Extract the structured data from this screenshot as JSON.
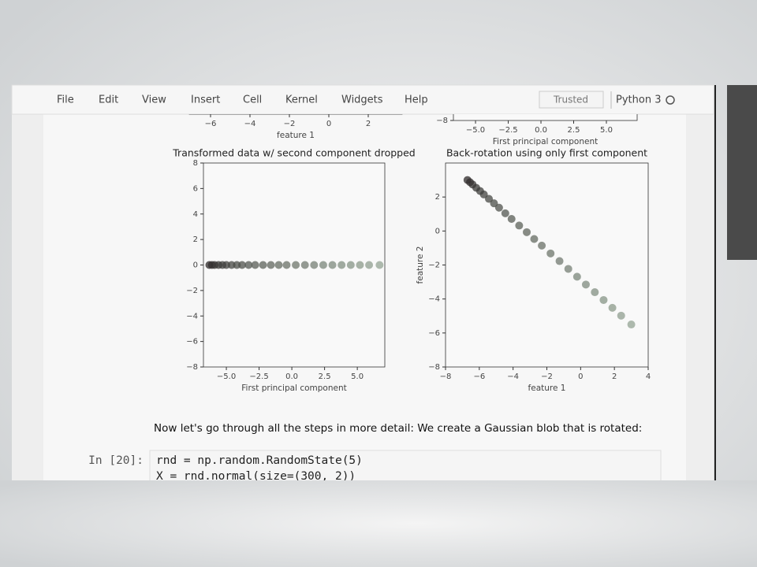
{
  "menu": [
    "File",
    "Edit",
    "View",
    "Insert",
    "Cell",
    "Kernel",
    "Widgets",
    "Help"
  ],
  "trusted": "Trusted",
  "kernel": "Python 3",
  "chart_data": [
    {
      "type": "scatter",
      "xlabel": "feature 1",
      "xlim": [
        -7.08,
        3.72
      ],
      "xticks": [
        {
          "value": -6,
          "label": "−6"
        },
        {
          "value": -4,
          "label": "−4"
        },
        {
          "value": -2,
          "label": "−2"
        },
        0,
        2
      ]
    },
    {
      "type": "scatter",
      "xlabel": "First principal component",
      "xlim": [
        -6.69,
        7.35
      ],
      "ylim": [
        -8,
        8
      ],
      "xticks": [
        {
          "value": -5,
          "label": "−5.0"
        },
        {
          "value": -2.5,
          "label": "−2.5"
        },
        {
          "value": 0,
          "label": "0.0"
        },
        2.5,
        {
          "value": 5,
          "label": "5.0"
        }
      ],
      "yticks": [
        {
          "value": -8,
          "label": "−8"
        }
      ]
    },
    {
      "type": "scatter",
      "title": "Transformed data w/ second component dropped",
      "xlabel": "First principal component",
      "xlim": [
        -6.75,
        7.1
      ],
      "ylim": [
        -8,
        8
      ],
      "xticks": [
        {
          "value": -5,
          "label": "−5.0"
        },
        {
          "value": -2.5,
          "label": "−2.5"
        },
        {
          "value": 0,
          "label": "0.0"
        },
        2.5,
        {
          "value": 5,
          "label": "5.0"
        }
      ],
      "yticks": [
        8,
        6,
        4,
        2,
        0,
        {
          "value": -2,
          "label": "−2"
        },
        {
          "value": -4,
          "label": "−4"
        },
        {
          "value": -6,
          "label": "−6"
        },
        {
          "value": -8,
          "label": "−8"
        }
      ],
      "colors": [
        "#2d2929",
        "#93a393"
      ],
      "x": [
        -6.3,
        -6.1,
        -5.9,
        -5.6,
        -5.3,
        -5.0,
        -4.6,
        -4.2,
        -3.8,
        -3.3,
        -2.8,
        -2.2,
        -1.6,
        -1.0,
        -0.4,
        0.3,
        1.0,
        1.7,
        2.4,
        3.1,
        3.8,
        4.5,
        5.2,
        5.9,
        6.7
      ],
      "values": [
        0,
        0,
        0,
        0,
        0,
        0,
        0,
        0,
        0,
        0,
        0,
        0,
        0,
        0,
        0,
        0,
        0,
        0,
        0,
        0,
        0,
        0,
        0,
        0,
        0
      ]
    },
    {
      "type": "scatter",
      "title": "Back-rotation using only first component",
      "xlabel": "feature 1",
      "ylabel": "feature 2",
      "xlim": [
        -8,
        4
      ],
      "ylim": [
        -8,
        4
      ],
      "xticks": [
        {
          "value": -8,
          "label": "−8"
        },
        {
          "value": -6,
          "label": "−6"
        },
        {
          "value": -4,
          "label": "−4"
        },
        {
          "value": -2,
          "label": "−2"
        },
        0,
        2,
        4
      ],
      "yticks": [
        2,
        0,
        {
          "value": -2,
          "label": "−2"
        },
        {
          "value": -4,
          "label": "−4"
        },
        {
          "value": -6,
          "label": "−6"
        },
        {
          "value": -8,
          "label": "−8"
        }
      ],
      "colors": [
        "#2d2929",
        "#93a393"
      ],
      "x": [
        -6.7,
        -6.55,
        -6.4,
        -6.18,
        -5.95,
        -5.73,
        -5.43,
        -5.13,
        -4.83,
        -4.46,
        -4.09,
        -3.64,
        -3.19,
        -2.75,
        -2.3,
        -1.78,
        -1.25,
        -0.73,
        -0.21,
        0.31,
        0.84,
        1.36,
        1.88,
        2.4,
        3.0
      ],
      "values": [
        3.0,
        2.87,
        2.74,
        2.54,
        2.35,
        2.15,
        1.89,
        1.63,
        1.37,
        1.04,
        0.71,
        0.32,
        -0.07,
        -0.47,
        -0.86,
        -1.32,
        -1.77,
        -2.23,
        -2.69,
        -3.15,
        -3.6,
        -4.06,
        -4.52,
        -4.98,
        -5.5
      ]
    }
  ],
  "markdown": "Now let's go through all the steps in more detail: We create a Gaussian blob that is rotated:",
  "code_cell": {
    "prompt": "In [20]:",
    "lines": [
      "rnd = np.random.RandomState(5)",
      "X  = rnd.normal(size=(300, 2))"
    ]
  }
}
